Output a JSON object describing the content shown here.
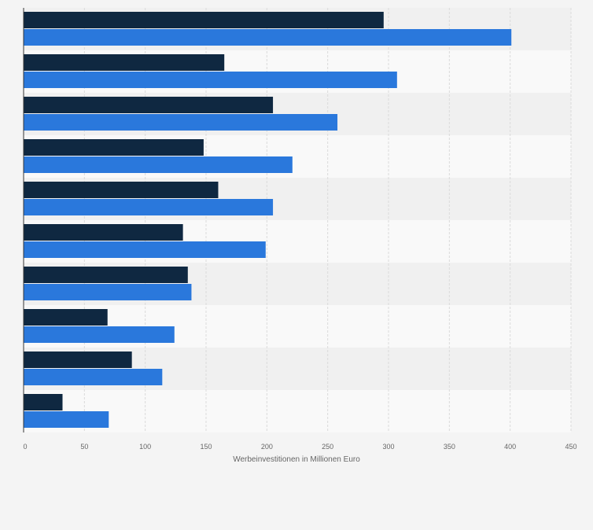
{
  "chart_data": {
    "type": "bar",
    "orientation": "horizontal",
    "categories": [
      "",
      "",
      "",
      "",
      "",
      "",
      "",
      "",
      "",
      ""
    ],
    "series": [
      {
        "values": [
          296,
          165,
          205,
          148,
          160,
          131,
          135,
          69,
          89,
          32
        ]
      },
      {
        "values": [
          401,
          307,
          258,
          221,
          205,
          199,
          138,
          124,
          114,
          70
        ]
      }
    ],
    "xlabel": "Werbeinvestitionen in Millionen Euro",
    "ylabel": "",
    "xlim": [
      0,
      450
    ],
    "xticks": [
      0,
      50,
      100,
      150,
      200,
      250,
      300,
      350,
      400,
      450
    ],
    "grid": true,
    "legend": "none"
  },
  "colors": {
    "series_dark": "#0f2841",
    "series_blue": "#2a78dc",
    "band_light": "#f9f9f9",
    "band_dark": "#f0f0f0",
    "grid": "#dadada",
    "axis_text": "#666666",
    "axis_line": "#333333"
  }
}
